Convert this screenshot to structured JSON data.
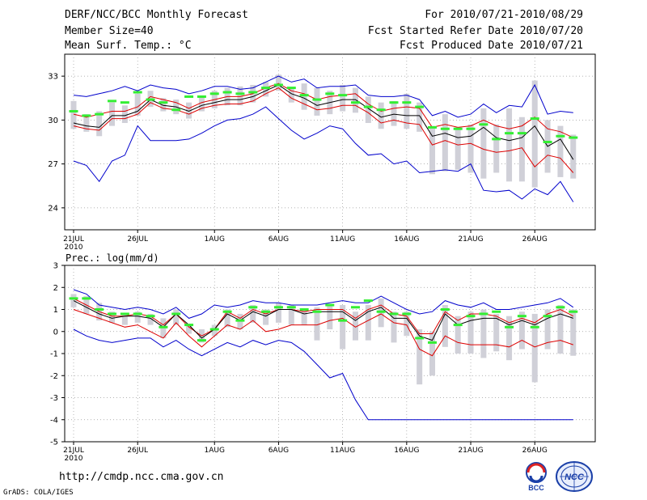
{
  "header": {
    "line1_left": "DERF/NCC/BCC Monthly Forecast",
    "line2_left": "Member Size=40",
    "line3_left": "Mean Surf. Temp.: °C",
    "line1_right": "For 2010/07/21-2010/08/29",
    "line2_right": "Fcst Started Refer Date 2010/07/20",
    "line3_right": "Fcst Produced Date 2010/07/21"
  },
  "footer": {
    "url": "http://cmdp.ncc.cma.gov.cn",
    "grads": "GrADS: COLA/IGES",
    "logo_bcc": "BCC",
    "logo_ncc": "NCC"
  },
  "colors": {
    "max_line": "#0000cc",
    "min_line": "#0000cc",
    "upper_line": "#dd0000",
    "lower_line": "#dd0000",
    "mean_line": "#000000",
    "box": "#d0d0d8",
    "median": "#33ee33"
  },
  "chart_data": [
    {
      "type": "line",
      "title": "Mean Surf. Temp.: °C",
      "x_tick_labels": [
        "21JUL",
        "26JUL",
        "1AUG",
        "6AUG",
        "11AUG",
        "16AUG",
        "21AUG",
        "26AUG"
      ],
      "x_tick_days": [
        1,
        6,
        12,
        17,
        22,
        27,
        32,
        37
      ],
      "x_sublabel": "2010",
      "days": 40,
      "ylim": [
        22.5,
        34.5
      ],
      "y_ticks": [
        24,
        27,
        30,
        33
      ],
      "series": [
        {
          "name": "max",
          "values": [
            31.7,
            31.6,
            31.8,
            32.0,
            32.3,
            32.0,
            32.4,
            32.2,
            32.1,
            31.8,
            32.0,
            32.3,
            32.3,
            32.1,
            32.2,
            32.6,
            33.0,
            32.6,
            32.8,
            32.2,
            32.3,
            32.3,
            32.4,
            31.7,
            31.6,
            31.6,
            31.7,
            31.4,
            30.3,
            30.6,
            30.2,
            30.4,
            31.1,
            30.5,
            31.0,
            30.9,
            32.4,
            30.4,
            30.6,
            30.5
          ]
        },
        {
          "name": "upper",
          "values": [
            30.4,
            30.2,
            30.4,
            30.6,
            30.6,
            30.9,
            31.6,
            31.4,
            31.2,
            30.8,
            31.2,
            31.4,
            31.6,
            31.6,
            31.8,
            32.2,
            32.5,
            32.0,
            31.8,
            31.4,
            31.6,
            31.7,
            31.8,
            31.1,
            30.6,
            30.8,
            30.9,
            30.8,
            29.5,
            29.7,
            29.5,
            29.6,
            30.0,
            29.6,
            29.4,
            29.6,
            30.2,
            29.4,
            29.2,
            28.8
          ]
        },
        {
          "name": "mean",
          "values": [
            29.8,
            29.6,
            29.5,
            30.3,
            30.3,
            30.6,
            31.4,
            31.0,
            30.9,
            30.6,
            31.0,
            31.2,
            31.4,
            31.4,
            31.6,
            32.0,
            32.4,
            31.8,
            31.5,
            31.0,
            31.2,
            31.4,
            31.4,
            30.8,
            30.2,
            30.4,
            30.3,
            30.3,
            28.9,
            29.1,
            28.8,
            28.9,
            29.5,
            28.8,
            28.6,
            28.8,
            29.6,
            28.2,
            28.7,
            27.3
          ]
        },
        {
          "name": "lower",
          "values": [
            29.6,
            29.4,
            29.3,
            30.1,
            30.1,
            30.4,
            31.2,
            30.8,
            30.7,
            30.4,
            30.8,
            31.0,
            31.1,
            31.1,
            31.3,
            31.8,
            32.2,
            31.5,
            31.1,
            30.7,
            30.8,
            31.0,
            31.0,
            30.5,
            29.8,
            30.0,
            29.8,
            29.7,
            28.3,
            28.6,
            28.3,
            28.4,
            28.0,
            27.8,
            27.9,
            28.1,
            26.8,
            27.6,
            27.4,
            26.4
          ]
        },
        {
          "name": "min",
          "values": [
            27.2,
            26.9,
            25.8,
            27.2,
            27.6,
            29.6,
            28.6,
            28.6,
            28.6,
            28.7,
            29.1,
            29.6,
            30.0,
            30.1,
            30.4,
            30.9,
            30.1,
            29.3,
            28.7,
            29.1,
            29.6,
            29.4,
            28.4,
            27.6,
            27.7,
            27.0,
            27.2,
            26.4,
            26.5,
            26.6,
            26.5,
            27.0,
            25.2,
            25.1,
            25.2,
            24.6,
            25.3,
            24.9,
            25.8,
            24.4
          ]
        },
        {
          "name": "box_low",
          "values": [
            29.4,
            29.2,
            28.9,
            29.6,
            29.8,
            30.3,
            30.9,
            30.6,
            30.4,
            30.1,
            30.6,
            30.8,
            31.0,
            31.0,
            31.2,
            31.6,
            32.0,
            31.2,
            30.7,
            30.3,
            30.4,
            30.6,
            30.5,
            29.8,
            29.4,
            29.6,
            29.4,
            29.2,
            26.3,
            26.5,
            26.6,
            26.4,
            26.0,
            26.4,
            25.8,
            25.8,
            25.4,
            26.4,
            26.1,
            26.0
          ]
        },
        {
          "name": "box_high",
          "values": [
            31.3,
            30.4,
            30.6,
            31.2,
            31.0,
            31.8,
            32.0,
            31.5,
            31.4,
            31.2,
            31.6,
            32.0,
            32.2,
            32.3,
            32.4,
            32.6,
            33.1,
            32.2,
            32.5,
            32.2,
            32.0,
            32.4,
            32.2,
            31.6,
            31.2,
            31.3,
            31.8,
            31.2,
            29.6,
            30.4,
            29.5,
            29.7,
            30.8,
            29.7,
            30.8,
            30.2,
            32.7,
            30.0,
            29.6,
            29.0
          ]
        },
        {
          "name": "median",
          "values": [
            30.6,
            30.3,
            30.4,
            31.3,
            31.2,
            31.9,
            31.4,
            31.2,
            30.7,
            31.6,
            31.6,
            31.8,
            31.9,
            31.8,
            31.9,
            32.2,
            32.4,
            32.2,
            31.7,
            31.4,
            31.8,
            31.7,
            31.2,
            30.9,
            30.7,
            31.2,
            31.2,
            30.9,
            29.5,
            29.4,
            29.4,
            29.4,
            29.7,
            28.7,
            29.1,
            29.1,
            30.1,
            28.5,
            28.9,
            28.8
          ]
        }
      ]
    },
    {
      "type": "line",
      "title": "Prec.: log(mm/d)",
      "x_tick_labels": [
        "21JUL",
        "26JUL",
        "1AUG",
        "6AUG",
        "11AUG",
        "16AUG",
        "21AUG",
        "26AUG"
      ],
      "x_tick_days": [
        1,
        6,
        12,
        17,
        22,
        27,
        32,
        37
      ],
      "x_sublabel": "2010",
      "days": 40,
      "ylim": [
        -5,
        3
      ],
      "y_ticks": [
        -5,
        -4,
        -3,
        -2,
        -1,
        0,
        1,
        2,
        3
      ],
      "series": [
        {
          "name": "max",
          "values": [
            1.9,
            1.7,
            1.2,
            1.1,
            1.0,
            1.1,
            1.0,
            0.8,
            1.1,
            0.6,
            0.8,
            1.2,
            1.1,
            1.2,
            1.4,
            1.3,
            1.3,
            1.2,
            1.2,
            1.2,
            1.3,
            1.4,
            1.3,
            1.3,
            1.6,
            1.3,
            1.0,
            0.8,
            0.9,
            1.4,
            1.2,
            1.1,
            1.3,
            1.0,
            1.0,
            1.1,
            1.2,
            1.3,
            1.5,
            1.1
          ]
        },
        {
          "name": "upper",
          "values": [
            1.5,
            1.2,
            0.9,
            0.7,
            0.7,
            0.8,
            0.7,
            0.3,
            0.8,
            0.2,
            -0.2,
            0.1,
            0.9,
            0.6,
            1.0,
            0.8,
            1.0,
            1.0,
            0.9,
            1.0,
            1.0,
            1.0,
            0.6,
            1.0,
            1.2,
            0.8,
            0.7,
            -0.1,
            -0.1,
            0.9,
            0.5,
            0.8,
            0.8,
            0.7,
            0.4,
            0.6,
            0.4,
            0.8,
            1.0,
            0.7
          ]
        },
        {
          "name": "mean",
          "values": [
            1.4,
            1.1,
            0.8,
            0.6,
            0.7,
            0.7,
            0.6,
            0.2,
            0.8,
            0.3,
            -0.3,
            0.1,
            0.8,
            0.5,
            0.9,
            0.7,
            1.0,
            1.0,
            0.8,
            0.9,
            0.9,
            0.9,
            0.5,
            0.9,
            1.1,
            0.6,
            0.6,
            -0.2,
            -0.4,
            0.8,
            0.3,
            0.5,
            0.6,
            0.6,
            0.3,
            0.5,
            0.3,
            0.6,
            0.8,
            0.6
          ]
        },
        {
          "name": "lower",
          "values": [
            1.0,
            0.8,
            0.6,
            0.4,
            0.2,
            0.3,
            0.0,
            -0.3,
            0.4,
            -0.2,
            -0.7,
            -0.2,
            0.3,
            0.1,
            0.5,
            0.0,
            0.1,
            0.3,
            0.3,
            0.3,
            0.5,
            0.6,
            0.2,
            0.5,
            0.8,
            0.4,
            0.3,
            -0.8,
            -1.1,
            -0.2,
            -0.5,
            -0.6,
            -0.6,
            -0.6,
            -0.7,
            -0.4,
            -0.7,
            -0.5,
            -0.4,
            -0.6
          ]
        },
        {
          "name": "min",
          "values": [
            0.1,
            -0.2,
            -0.4,
            -0.5,
            -0.4,
            -0.3,
            -0.3,
            -0.7,
            -0.4,
            -0.8,
            -1.1,
            -0.8,
            -0.5,
            -0.7,
            -0.4,
            -0.6,
            -0.4,
            -0.5,
            -0.9,
            -1.5,
            -2.1,
            -1.9,
            -3.1,
            -4.0,
            -4.0,
            -4.0,
            -4.0,
            -4.0,
            -4.0,
            -4.0,
            -4.0,
            -4.0,
            -4.0,
            -4.0,
            -4.0,
            -4.0,
            -4.0,
            -4.0,
            -4.0,
            -4.0
          ]
        },
        {
          "name": "box_low",
          "values": [
            1.1,
            0.8,
            0.5,
            0.4,
            0.3,
            0.4,
            0.3,
            -0.3,
            0.3,
            -0.1,
            -0.5,
            -0.2,
            0.2,
            0.1,
            0.4,
            0.3,
            0.4,
            0.3,
            0.3,
            -0.4,
            0.1,
            -0.8,
            -0.4,
            -0.4,
            0.2,
            -0.5,
            -0.2,
            -2.4,
            -2.0,
            -0.7,
            -1.0,
            -1.0,
            -1.2,
            -0.9,
            -1.3,
            -0.8,
            -2.3,
            -0.8,
            -1.0,
            -1.1
          ]
        },
        {
          "name": "box_high",
          "values": [
            1.7,
            1.6,
            1.3,
            0.9,
            0.8,
            0.9,
            0.8,
            0.6,
            1.0,
            0.3,
            0.1,
            0.3,
            1.0,
            0.8,
            1.2,
            1.0,
            1.3,
            1.2,
            1.0,
            1.1,
            1.2,
            1.2,
            0.9,
            1.2,
            1.5,
            0.9,
            0.9,
            0.1,
            0.0,
            1.2,
            0.7,
            0.9,
            1.0,
            0.8,
            0.7,
            0.9,
            0.8,
            1.0,
            1.2,
            1.0
          ]
        },
        {
          "name": "median",
          "values": [
            1.5,
            1.5,
            1.0,
            0.8,
            0.8,
            0.8,
            0.7,
            0.2,
            0.8,
            0.3,
            -0.4,
            0.1,
            0.9,
            0.5,
            1.1,
            0.9,
            1.1,
            1.1,
            1.0,
            0.9,
            1.2,
            0.5,
            1.1,
            1.4,
            0.9,
            0.8,
            0.8,
            -0.3,
            -0.5,
            1.0,
            0.3,
            0.7,
            0.8,
            0.9,
            0.2,
            0.7,
            0.2,
            0.7,
            1.1,
            0.9
          ]
        }
      ]
    }
  ]
}
